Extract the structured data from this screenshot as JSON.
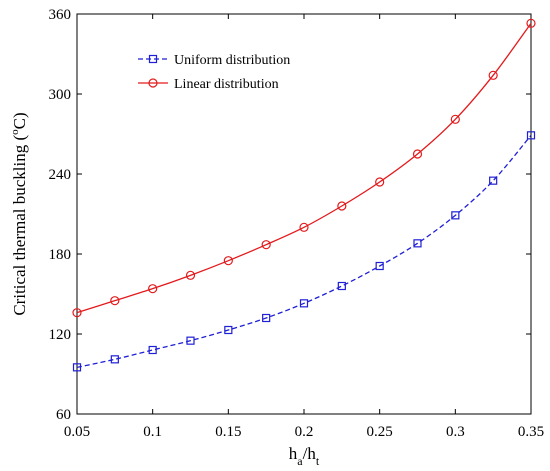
{
  "chart_data": {
    "type": "line",
    "title": "",
    "xlabel": "h_a/h_t",
    "xlabel_parts": {
      "h1": "h",
      "sub1": "a",
      "slash": "/h",
      "sub2": "t"
    },
    "ylabel": "Critical thermal buckling (°C)",
    "ylabel_parts": {
      "prefix": "Critical thermal buckling (",
      "sup": "o",
      "suffix": "C)"
    },
    "xlim": [
      0.05,
      0.35
    ],
    "ylim": [
      60,
      360
    ],
    "x_ticks": [
      "0.05",
      "0.1",
      "0.15",
      "0.2",
      "0.25",
      "0.3",
      "0.35"
    ],
    "y_ticks": [
      "60",
      "120",
      "180",
      "240",
      "300",
      "360"
    ],
    "grid": false,
    "legend_position": "top-left",
    "x": [
      0.05,
      0.075,
      0.1,
      0.125,
      0.15,
      0.175,
      0.2,
      0.225,
      0.25,
      0.275,
      0.3,
      0.325,
      0.35
    ],
    "series": [
      {
        "name": "Uniform distribution",
        "color": "#1f1fd6",
        "line_style": "dashed",
        "marker": "square",
        "values": [
          95,
          101,
          108,
          115,
          123,
          132,
          143,
          156,
          171,
          188,
          209,
          235,
          269
        ]
      },
      {
        "name": "Linear distribution",
        "color": "#e31a1c",
        "line_style": "solid",
        "marker": "circle",
        "values": [
          136,
          145,
          154,
          164,
          175,
          187,
          200,
          216,
          234,
          255,
          281,
          314,
          353
        ]
      }
    ]
  }
}
